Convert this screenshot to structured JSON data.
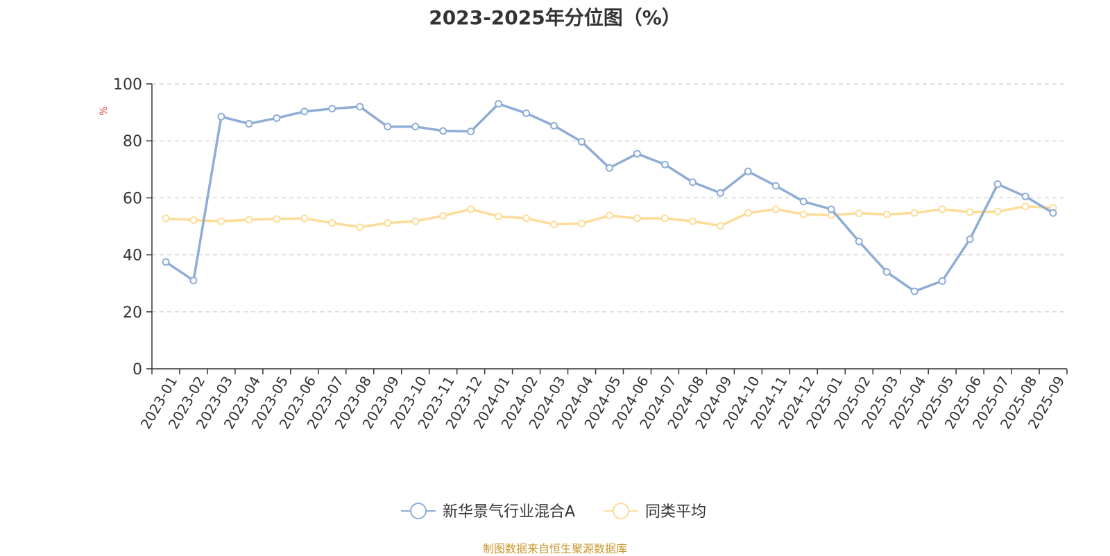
{
  "page": {
    "source": "制图数据来自恒生聚源数据库"
  },
  "chart_data": {
    "type": "line",
    "title": "2023-2025年分位图（%）",
    "ylabel": "%",
    "ylim": [
      0,
      100
    ],
    "yticks": [
      0,
      20,
      40,
      60,
      80,
      100
    ],
    "grid": true,
    "legend_position": "bottom",
    "categories": [
      "2023-01",
      "2023-02",
      "2023-03",
      "2023-04",
      "2023-05",
      "2023-06",
      "2023-07",
      "2023-08",
      "2023-09",
      "2023-10",
      "2023-11",
      "2023-12",
      "2024-01",
      "2024-02",
      "2024-03",
      "2024-04",
      "2024-05",
      "2024-06",
      "2024-07",
      "2024-08",
      "2024-09",
      "2024-10",
      "2024-11",
      "2024-12",
      "2025-01",
      "2025-02",
      "2025-03",
      "2025-04",
      "2025-05",
      "2025-06",
      "2025-07",
      "2025-08",
      "2025-09"
    ],
    "series": [
      {
        "name": "新华景气行业混合A",
        "color": "#8eacd6",
        "values": [
          37.5,
          31,
          88.5,
          86,
          88,
          90.3,
          91.3,
          92,
          85,
          85,
          83.5,
          83.3,
          93,
          89.7,
          85.3,
          79.7,
          70.5,
          75.5,
          71.7,
          65.5,
          61.7,
          69.3,
          64.2,
          58.7,
          56,
          44.7,
          34,
          27.2,
          30.8,
          45.5,
          64.8,
          60.5,
          54.7
        ]
      },
      {
        "name": "同类平均",
        "color": "#fddc98",
        "values": [
          52.8,
          52.2,
          51.8,
          52.3,
          52.6,
          52.8,
          51.2,
          49.7,
          51.2,
          51.8,
          53.7,
          56,
          53.5,
          52.8,
          50.7,
          51,
          53.8,
          52.8,
          52.8,
          51.8,
          50.2,
          54.7,
          56,
          54.2,
          54,
          54.6,
          54.2,
          54.7,
          56,
          55,
          55.2,
          57,
          56.5
        ]
      }
    ]
  }
}
